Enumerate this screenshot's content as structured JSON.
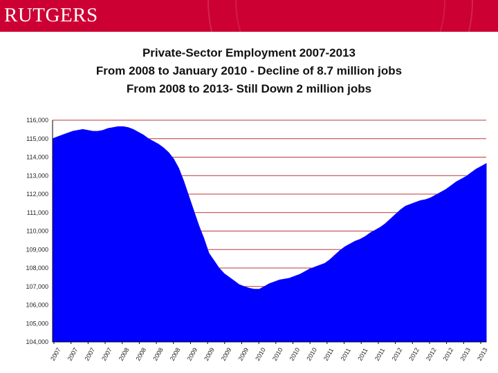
{
  "header": {
    "brand": "RUTGERS",
    "brand_color": "#cc0033"
  },
  "chart_data": {
    "type": "area",
    "title_lines": [
      "Private-Sector Employment 2007-2013",
      "From 2008 to January 2010 - Decline of 8.7 million jobs",
      "From 2008 to 2013- Still Down 2 million jobs"
    ],
    "xlabel": "",
    "ylabel": "",
    "ylim": [
      104000,
      116000
    ],
    "yticks": [
      {
        "value": 116000,
        "label": "116,000"
      },
      {
        "value": 115000,
        "label": "115,000"
      },
      {
        "value": 114000,
        "label": "114,000"
      },
      {
        "value": 113000,
        "label": "113,000"
      },
      {
        "value": 112000,
        "label": "112,000"
      },
      {
        "value": 111000,
        "label": "111,000"
      },
      {
        "value": 110000,
        "label": "110,000"
      },
      {
        "value": 109000,
        "label": "109,000"
      },
      {
        "value": 108000,
        "label": "108,000"
      },
      {
        "value": 107000,
        "label": "107,000"
      },
      {
        "value": 106000,
        "label": "106,000"
      },
      {
        "value": 105000,
        "label": "105,000"
      },
      {
        "value": 104000,
        "label": "104,000"
      }
    ],
    "xtick_labels": [
      "2007",
      "2007",
      "2007",
      "2007",
      "2008",
      "2008",
      "2008",
      "2008",
      "2009",
      "2009",
      "2009",
      "2009",
      "2010",
      "2010",
      "2010",
      "2010",
      "2011",
      "2011",
      "2011",
      "2011",
      "2012",
      "2012",
      "2012",
      "2012",
      "2013",
      "2013"
    ],
    "fill_color": "#0000ff",
    "gridline_color": "#b22222",
    "grid": true,
    "values": [
      115000,
      115100,
      115200,
      115300,
      115400,
      115450,
      115500,
      115450,
      115400,
      115400,
      115450,
      115550,
      115600,
      115650,
      115650,
      115600,
      115500,
      115350,
      115200,
      115000,
      114850,
      114700,
      114500,
      114250,
      113900,
      113400,
      112700,
      111900,
      111100,
      110300,
      109600,
      108800,
      108400,
      108000,
      107700,
      107500,
      107300,
      107100,
      107000,
      106900,
      106850,
      106850,
      107000,
      107150,
      107250,
      107350,
      107400,
      107450,
      107550,
      107650,
      107800,
      107950,
      108050,
      108150,
      108250,
      108450,
      108700,
      108950,
      109150,
      109300,
      109450,
      109550,
      109700,
      109900,
      110050,
      110200,
      110400,
      110650,
      110900,
      111150,
      111350,
      111450,
      111550,
      111650,
      111700,
      111800,
      111950,
      112100,
      112250,
      112450,
      112650,
      112800,
      112950,
      113150,
      113350,
      113500,
      113650
    ]
  }
}
